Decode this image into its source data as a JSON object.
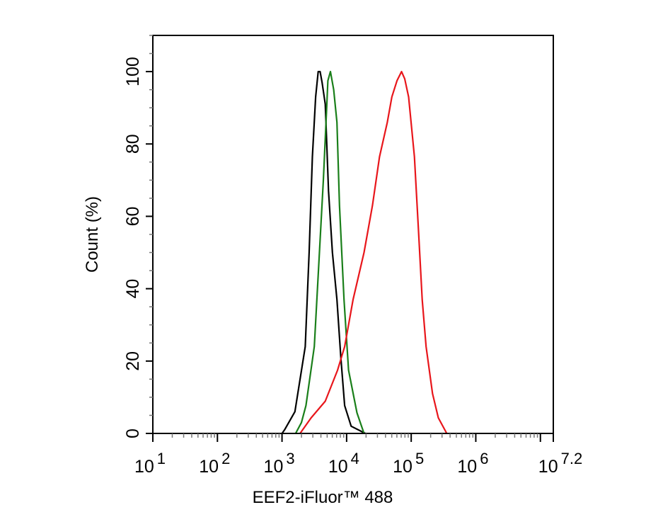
{
  "chart_data": {
    "type": "line",
    "title": "",
    "xlabel": "EEF2-iFluor™ 488",
    "ylabel": "Count  (%)",
    "x_scale": "log10",
    "xlim_log10": [
      1,
      7.2
    ],
    "ylim": [
      0,
      110
    ],
    "x_tick_labels": [
      {
        "base": "10",
        "exp": "1",
        "log10": 1
      },
      {
        "base": "10",
        "exp": "2",
        "log10": 2
      },
      {
        "base": "10",
        "exp": "3",
        "log10": 3
      },
      {
        "base": "10",
        "exp": "4",
        "log10": 4
      },
      {
        "base": "10",
        "exp": "5",
        "log10": 5
      },
      {
        "base": "10",
        "exp": "6",
        "log10": 6
      },
      {
        "base": "10",
        "exp": "7.2",
        "log10": 7.2
      }
    ],
    "y_ticks": [
      0,
      20,
      40,
      60,
      80,
      100
    ],
    "grid": false,
    "legend": "none",
    "series": [
      {
        "color": "#000000",
        "x_log10": [
          3.0,
          3.04,
          3.2,
          3.36,
          3.42,
          3.47,
          3.52,
          3.56,
          3.59,
          3.62,
          3.67,
          3.72,
          3.78,
          3.85,
          3.91,
          3.97,
          4.07,
          4.29
        ],
        "y": [
          0,
          1,
          6,
          24,
          50,
          76.5,
          93,
          100,
          100,
          97,
          91,
          67,
          50,
          37,
          21,
          7.7,
          2,
          0
        ]
      },
      {
        "color": "#1a7f1a",
        "x_log10": [
          3.21,
          3.3,
          3.37,
          3.5,
          3.56,
          3.64,
          3.69,
          3.71,
          3.75,
          3.8,
          3.85,
          3.89,
          3.96,
          4.03,
          4.16,
          4.27
        ],
        "y": [
          0,
          3,
          7.7,
          24,
          43.7,
          70,
          89.6,
          97.5,
          100,
          95,
          86,
          63,
          37,
          17.5,
          5.7,
          0
        ]
      },
      {
        "color": "#e8161b",
        "x_log10": [
          3.28,
          3.45,
          3.67,
          3.86,
          3.97,
          4.1,
          4.27,
          4.4,
          4.51,
          4.63,
          4.7,
          4.78,
          4.85,
          4.9,
          4.96,
          5.05,
          5.11,
          5.17,
          5.23,
          5.33,
          5.42,
          5.55
        ],
        "y": [
          0,
          4.3,
          8.9,
          17.5,
          24,
          37,
          50,
          63,
          76.5,
          86,
          93,
          97.5,
          100,
          98,
          93,
          76.5,
          57,
          37,
          24,
          11,
          4.3,
          0
        ]
      }
    ]
  }
}
